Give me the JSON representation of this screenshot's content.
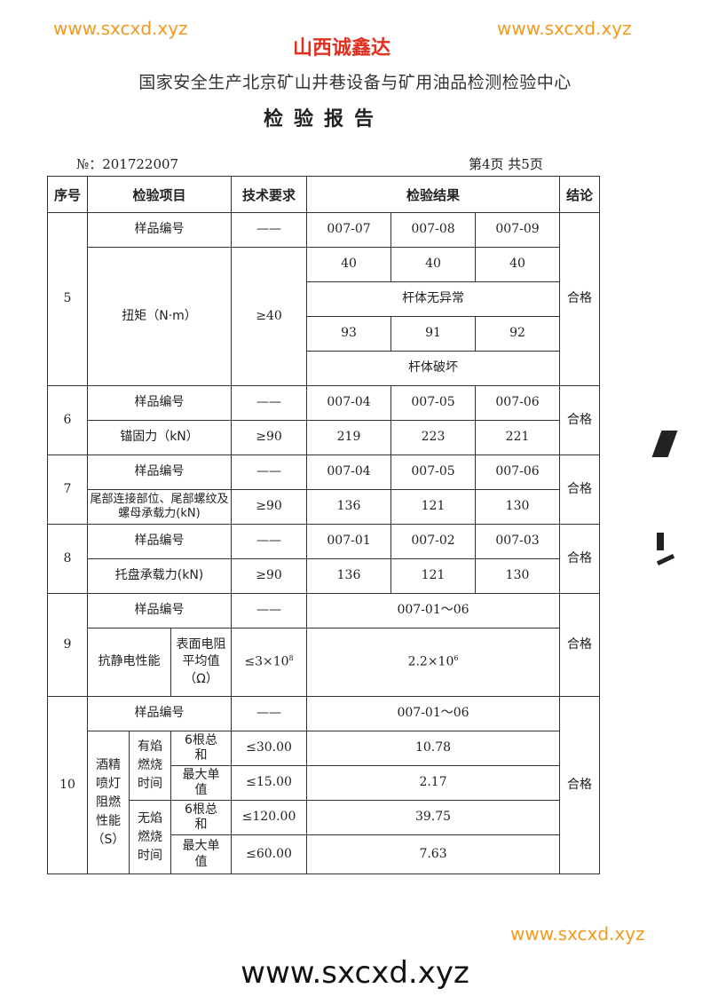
{
  "header": {
    "organization": "国家安全生产北京矿山井巷设备与矿用油品检测检验中心",
    "title": "检验报告",
    "report_no": "№：201722007",
    "page_info": "第4页 共5页"
  },
  "table": {
    "columns": [
      "序号",
      "检验项目",
      "技术要求",
      "检验结果",
      "结论"
    ],
    "rows": {
      "r5": {
        "no": "5",
        "sample_label": "样品编号",
        "sample_req": "——",
        "samples": [
          "007-07",
          "007-08",
          "007-09"
        ],
        "item": "扭矩（N·m）",
        "req": "≥40",
        "vals1": [
          "40",
          "40",
          "40"
        ],
        "note1": "杆体无异常",
        "vals2": [
          "93",
          "91",
          "92"
        ],
        "note2": "杆体破坏",
        "result": "合格"
      },
      "r6": {
        "no": "6",
        "sample_label": "样品编号",
        "sample_req": "——",
        "samples": [
          "007-04",
          "007-05",
          "007-06"
        ],
        "item": "锚固力（kN）",
        "req": "≥90",
        "vals": [
          "219",
          "223",
          "221"
        ],
        "result": "合格"
      },
      "r7": {
        "no": "7",
        "sample_label": "样品编号",
        "sample_req": "——",
        "samples": [
          "007-04",
          "007-05",
          "007-06"
        ],
        "item": "尾部连接部位、尾部螺纹及螺母承载力(kN)",
        "req": "≥90",
        "vals": [
          "136",
          "121",
          "130"
        ],
        "result": "合格"
      },
      "r8": {
        "no": "8",
        "sample_label": "样品编号",
        "sample_req": "——",
        "samples": [
          "007-01",
          "007-02",
          "007-03"
        ],
        "item": "托盘承载力(kN)",
        "req": "≥90",
        "vals": [
          "136",
          "121",
          "130"
        ],
        "result": "合格"
      },
      "r9": {
        "no": "9",
        "sample_label": "样品编号",
        "sample_req": "——",
        "samples": "007-01～06",
        "item": "抗静电性能",
        "sub": "表面电阻平均值（Ω）",
        "req_base": "≤3×10",
        "req_exp": "8",
        "val_base": "2.2×10",
        "val_exp": "6",
        "result": "合格"
      },
      "r10": {
        "no": "10",
        "sample_label": "样品编号",
        "sample_req": "——",
        "samples": "007-01～06",
        "item": "酒精喷灯阻燃性能（S）",
        "flame": "有焰燃烧时间",
        "noflame": "无焰燃烧时间",
        "sum": "6根总和",
        "max": "最大单值",
        "req": [
          "≤30.00",
          "≤15.00",
          "≤120.00",
          "≤60.00"
        ],
        "vals": [
          "10.78",
          "2.17",
          "39.75",
          "7.63"
        ],
        "result": "合格"
      }
    }
  },
  "watermarks": {
    "site": "www.sxcxd.xyz",
    "company": "山西诚鑫达"
  },
  "footer": "www.sxcxd.xyz",
  "colors": {
    "watermark": "#f39a1e",
    "company_watermark": "#e0301e"
  }
}
